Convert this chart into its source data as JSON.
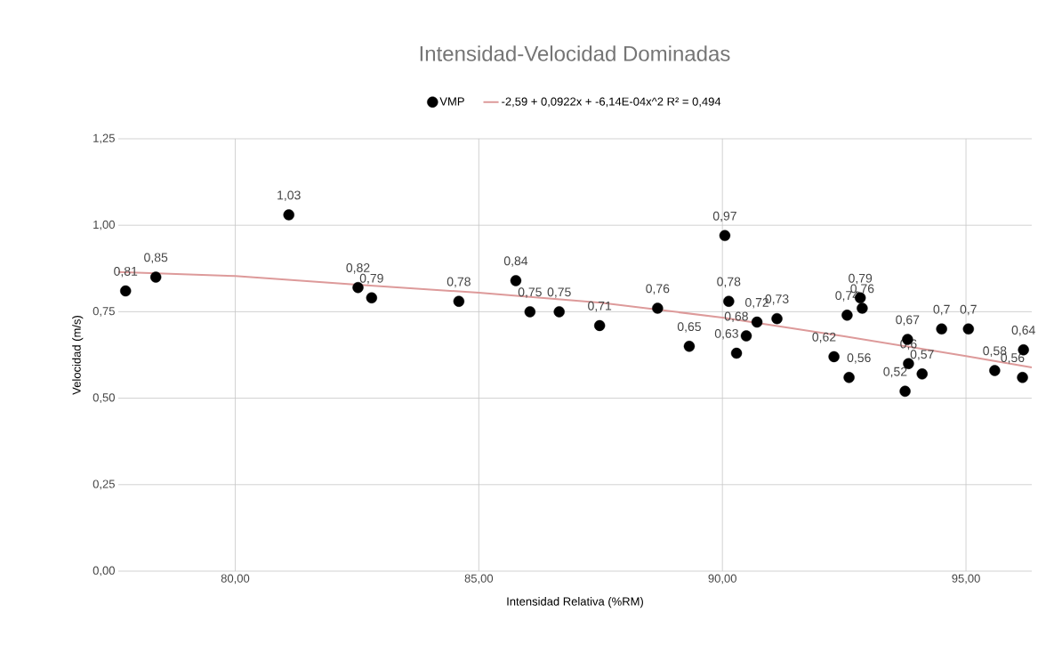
{
  "chart_data": {
    "type": "scatter",
    "title": "Intensidad-Velocidad Dominadas",
    "xlabel": "Intensidad Relativa (%RM)",
    "ylabel": "Velocidad (m/s)",
    "xlim": [
      77.6,
      96.35
    ],
    "ylim": [
      0,
      1.25
    ],
    "xticks": [
      {
        "value": 80,
        "label": "80,00"
      },
      {
        "value": 85,
        "label": "85,00"
      },
      {
        "value": 90,
        "label": "90,00"
      },
      {
        "value": 95,
        "label": "95,00"
      }
    ],
    "yticks": [
      {
        "value": 0,
        "label": "0,00"
      },
      {
        "value": 0.25,
        "label": "0,25"
      },
      {
        "value": 0.5,
        "label": "0,50"
      },
      {
        "value": 0.75,
        "label": "0,75"
      },
      {
        "value": 1,
        "label": "1,00"
      },
      {
        "value": 1.25,
        "label": "1,25"
      }
    ],
    "grid": true,
    "legend": "top",
    "series": [
      {
        "name": "VMP",
        "marker": "circle",
        "color": "#000000",
        "x": [
          77.75,
          78.37,
          81.1,
          82.52,
          82.8,
          84.59,
          85.76,
          86.05,
          86.65,
          87.48,
          88.67,
          89.32,
          90.05,
          90.13,
          90.29,
          90.49,
          90.71,
          91.12,
          92.29,
          92.56,
          92.6,
          92.83,
          92.87,
          93.75,
          93.8,
          93.82,
          94.1,
          94.5,
          95.05,
          95.59,
          96.16,
          96.18
        ],
        "values": [
          0.81,
          0.85,
          1.03,
          0.82,
          0.79,
          0.78,
          0.84,
          0.75,
          0.75,
          0.71,
          0.76,
          0.65,
          0.97,
          0.78,
          0.63,
          0.68,
          0.72,
          0.73,
          0.62,
          0.74,
          0.56,
          0.79,
          0.76,
          0.52,
          0.67,
          0.6,
          0.57,
          0.7,
          0.7,
          0.58,
          0.56,
          0.64
        ],
        "value_labels": [
          "0,81",
          "0,85",
          "1,03",
          "0,82",
          "0,79",
          "0,78",
          "0,84",
          "0,75",
          "0,75",
          "0,71",
          "0,76",
          "0,65",
          "0,97",
          "0,78",
          "0,63",
          "0,68",
          "0,72",
          "0,73",
          "0,62",
          "0,74",
          "0,56",
          "0,79",
          "0,76",
          "0,52",
          "0,67",
          "0,6",
          "0,57",
          "0,7",
          "0,7",
          "0,58",
          "0,56",
          "0,64"
        ]
      },
      {
        "name": "-2,59 + 0,0922x + -6,14E-04x^2 R² = 0,494",
        "type": "line",
        "marker": "none",
        "line_style": "solid",
        "color": "#dd9a9a",
        "x": [
          77.6,
          80,
          82.5,
          85,
          87.5,
          90,
          92.5,
          95,
          96.35
        ],
        "values": [
          0.865,
          0.853,
          0.828,
          0.805,
          0.776,
          0.733,
          0.679,
          0.622,
          0.589
        ]
      }
    ]
  }
}
